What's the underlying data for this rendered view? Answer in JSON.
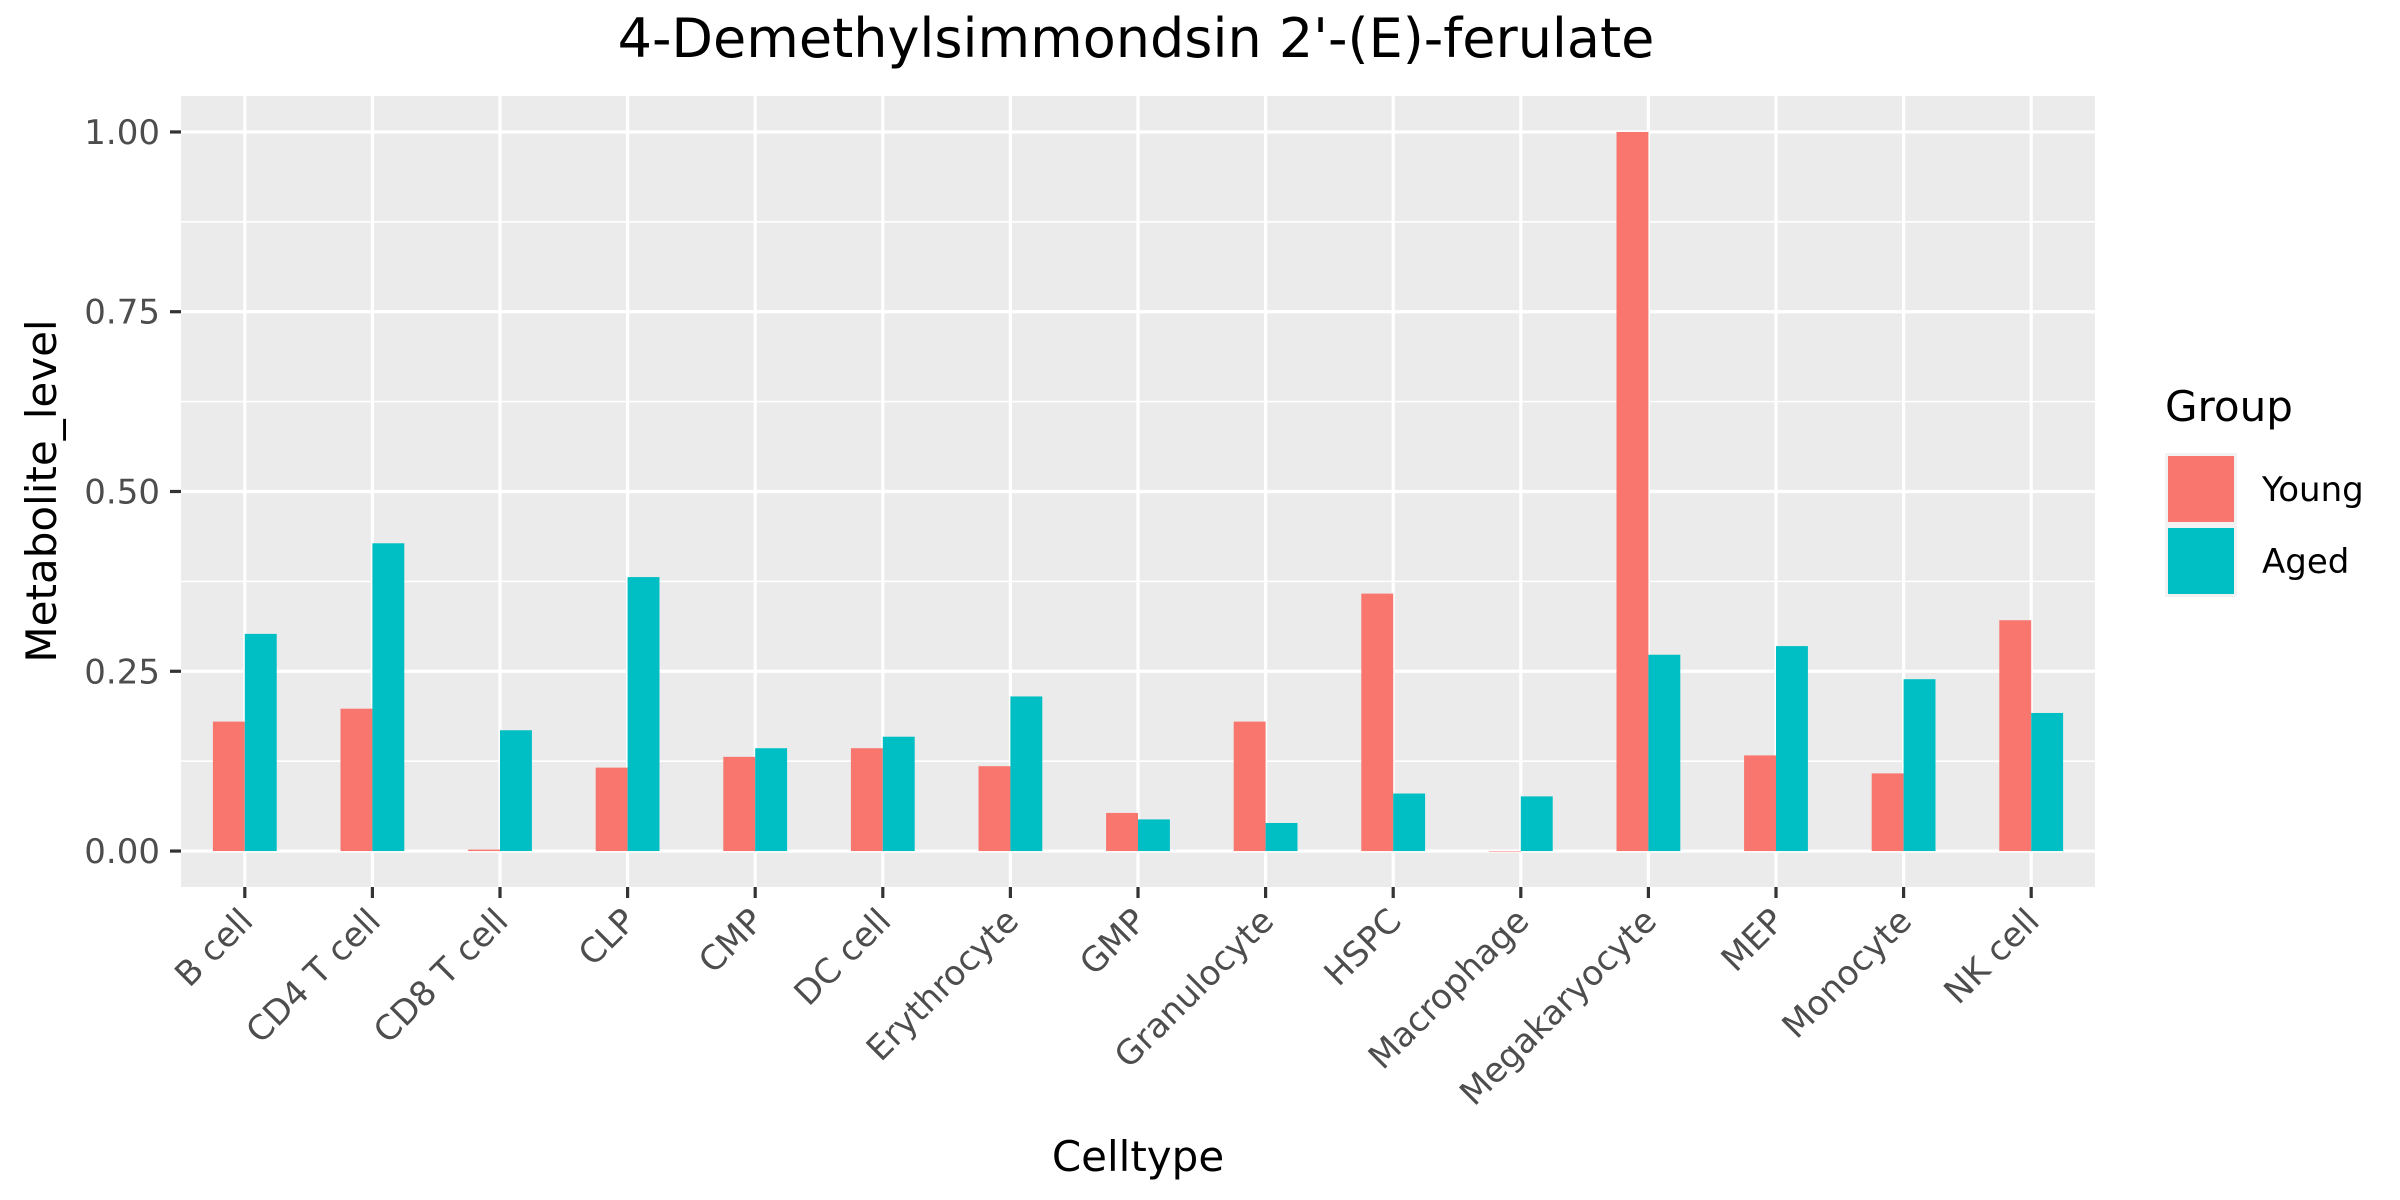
{
  "chart_data": {
    "type": "bar",
    "title": "4-Demethylsimmondsin 2'-(E)-ferulate",
    "xlabel": "Celltype",
    "ylabel": "Metabolite_level",
    "categories": [
      "B cell",
      "CD4 T cell",
      "CD8 T cell",
      "CLP",
      "CMP",
      "DC cell",
      "Erythrocyte",
      "GMP",
      "Granulocyte",
      "HSPC",
      "Macrophage",
      "Megakaryocyte",
      "MEP",
      "Monocyte",
      "NK cell"
    ],
    "series": [
      {
        "name": "Young",
        "color": "#F8766D",
        "values": [
          0.18,
          0.198,
          0.002,
          0.116,
          0.131,
          0.143,
          0.118,
          0.053,
          0.18,
          0.358,
          0.0,
          1.0,
          0.133,
          0.108,
          0.321
        ]
      },
      {
        "name": "Aged",
        "color": "#00BFC4",
        "values": [
          0.302,
          0.428,
          0.168,
          0.381,
          0.143,
          0.159,
          0.215,
          0.044,
          0.039,
          0.08,
          0.076,
          0.273,
          0.285,
          0.239,
          0.192
        ]
      }
    ],
    "yticks": [
      0.0,
      0.25,
      0.5,
      0.75,
      1.0
    ],
    "ytick_labels": [
      "0.00",
      "0.25",
      "0.50",
      "0.75",
      "1.00"
    ],
    "ylim": [
      -0.05,
      1.05
    ],
    "legend_title": "Group",
    "legend_position": "right",
    "grid": true,
    "panel_background": "#EBEBEB"
  }
}
